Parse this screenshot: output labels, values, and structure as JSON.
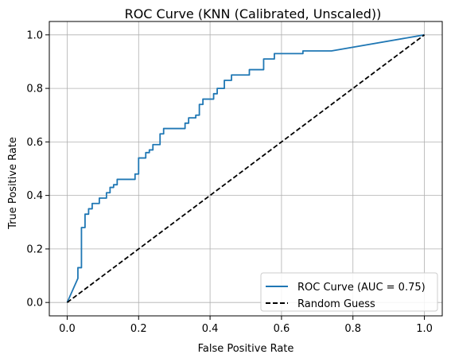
{
  "chart_data": {
    "type": "line",
    "title": "ROC Curve (KNN (Calibrated, Unscaled))",
    "xlabel": "False Positive Rate",
    "ylabel": "True Positive Rate",
    "xlim": [
      -0.05,
      1.05
    ],
    "ylim": [
      -0.05,
      1.05
    ],
    "xticks": [
      0.0,
      0.2,
      0.4,
      0.6,
      0.8,
      1.0
    ],
    "yticks": [
      0.0,
      0.2,
      0.4,
      0.6,
      0.8,
      1.0
    ],
    "xtick_labels": [
      "0.0",
      "0.2",
      "0.4",
      "0.6",
      "0.8",
      "1.0"
    ],
    "ytick_labels": [
      "0.0",
      "0.2",
      "0.4",
      "0.6",
      "0.8",
      "1.0"
    ],
    "grid": true,
    "legend_position": "bottom-right",
    "series": [
      {
        "name": "ROC Curve (AUC = 0.75)",
        "color": "#1f77b4",
        "style": "solid",
        "points": [
          [
            0.0,
            0.0
          ],
          [
            0.03,
            0.09
          ],
          [
            0.03,
            0.13
          ],
          [
            0.04,
            0.13
          ],
          [
            0.04,
            0.28
          ],
          [
            0.05,
            0.28
          ],
          [
            0.05,
            0.33
          ],
          [
            0.06,
            0.33
          ],
          [
            0.06,
            0.35
          ],
          [
            0.07,
            0.35
          ],
          [
            0.07,
            0.37
          ],
          [
            0.09,
            0.37
          ],
          [
            0.09,
            0.39
          ],
          [
            0.11,
            0.39
          ],
          [
            0.11,
            0.41
          ],
          [
            0.12,
            0.41
          ],
          [
            0.12,
            0.43
          ],
          [
            0.13,
            0.43
          ],
          [
            0.13,
            0.44
          ],
          [
            0.14,
            0.44
          ],
          [
            0.14,
            0.46
          ],
          [
            0.19,
            0.46
          ],
          [
            0.19,
            0.48
          ],
          [
            0.2,
            0.48
          ],
          [
            0.2,
            0.54
          ],
          [
            0.22,
            0.54
          ],
          [
            0.22,
            0.56
          ],
          [
            0.23,
            0.56
          ],
          [
            0.23,
            0.57
          ],
          [
            0.24,
            0.57
          ],
          [
            0.24,
            0.59
          ],
          [
            0.26,
            0.59
          ],
          [
            0.26,
            0.63
          ],
          [
            0.27,
            0.63
          ],
          [
            0.27,
            0.65
          ],
          [
            0.33,
            0.65
          ],
          [
            0.33,
            0.67
          ],
          [
            0.34,
            0.67
          ],
          [
            0.34,
            0.69
          ],
          [
            0.36,
            0.69
          ],
          [
            0.36,
            0.7
          ],
          [
            0.37,
            0.7
          ],
          [
            0.37,
            0.74
          ],
          [
            0.38,
            0.74
          ],
          [
            0.38,
            0.76
          ],
          [
            0.41,
            0.76
          ],
          [
            0.41,
            0.78
          ],
          [
            0.42,
            0.78
          ],
          [
            0.42,
            0.8
          ],
          [
            0.44,
            0.8
          ],
          [
            0.44,
            0.83
          ],
          [
            0.46,
            0.83
          ],
          [
            0.46,
            0.85
          ],
          [
            0.51,
            0.85
          ],
          [
            0.51,
            0.87
          ],
          [
            0.55,
            0.87
          ],
          [
            0.55,
            0.91
          ],
          [
            0.58,
            0.91
          ],
          [
            0.58,
            0.93
          ],
          [
            0.66,
            0.93
          ],
          [
            0.66,
            0.94
          ],
          [
            0.74,
            0.94
          ],
          [
            1.0,
            1.0
          ]
        ]
      },
      {
        "name": "Random Guess",
        "color": "#000000",
        "style": "dashed",
        "points": [
          [
            0.0,
            0.0
          ],
          [
            1.0,
            1.0
          ]
        ]
      }
    ]
  }
}
